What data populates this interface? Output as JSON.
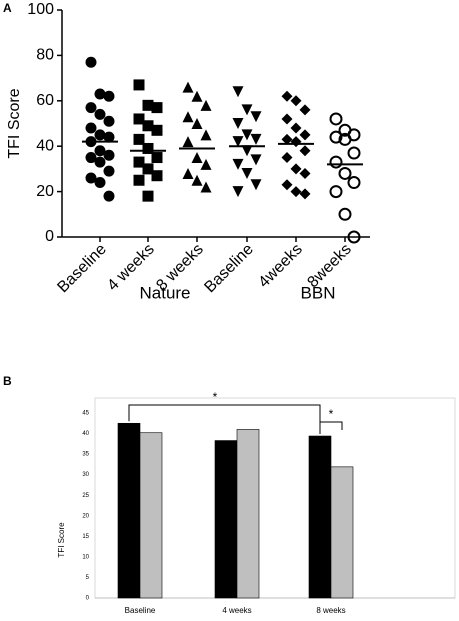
{
  "chart_data": [
    {
      "type": "dotplot",
      "panel": "A",
      "y_label": "TFI Score",
      "categories": [
        "Baseline",
        "4 weeks",
        "8 weeks",
        "Baseline",
        "4weeks",
        "8weeks"
      ],
      "groups": [
        "Nature",
        "BBN"
      ],
      "markers": [
        "circle",
        "square",
        "triangle-up",
        "triangle-down",
        "diamond",
        "open-circle"
      ],
      "color": "#000000",
      "points": [
        [
          77,
          63,
          62,
          57,
          54,
          51,
          48,
          45,
          44,
          42,
          38,
          36,
          35,
          33,
          29,
          26,
          24,
          18
        ],
        [
          67,
          58,
          57,
          52,
          49,
          47,
          43,
          39,
          35,
          33,
          30,
          27,
          25,
          18
        ],
        [
          66,
          62,
          58,
          53,
          50,
          45,
          42,
          35,
          32,
          28,
          25,
          22
        ],
        [
          64,
          56,
          53,
          50,
          45,
          43,
          42,
          38,
          34,
          32,
          28,
          23,
          20
        ],
        [
          62,
          60,
          56,
          52,
          48,
          45,
          43,
          42,
          38,
          35,
          30,
          28,
          23,
          20,
          19
        ],
        [
          52,
          47,
          45,
          44,
          43,
          37,
          33,
          28,
          24,
          20,
          10,
          0
        ]
      ],
      "means": [
        42,
        38,
        39,
        40,
        41,
        32
      ],
      "ylim": [
        0,
        100
      ],
      "yticks": [
        0,
        20,
        40,
        60,
        80,
        100
      ]
    },
    {
      "type": "bar",
      "panel": "B",
      "y_label": "TFI Score",
      "categories": [
        "Baseline",
        "4 weeks",
        "8 weeks"
      ],
      "series": [
        {
          "color": "#000000",
          "values": [
            42.5,
            38.3,
            39.4
          ]
        },
        {
          "color": "#bfbfbf",
          "values": [
            40.2,
            41,
            31.9
          ]
        }
      ],
      "annotations": [
        "*",
        "*"
      ],
      "ylim": [
        0,
        45
      ],
      "yticks": [
        0,
        5,
        10,
        15,
        20,
        25,
        30,
        35,
        40,
        45
      ]
    }
  ]
}
